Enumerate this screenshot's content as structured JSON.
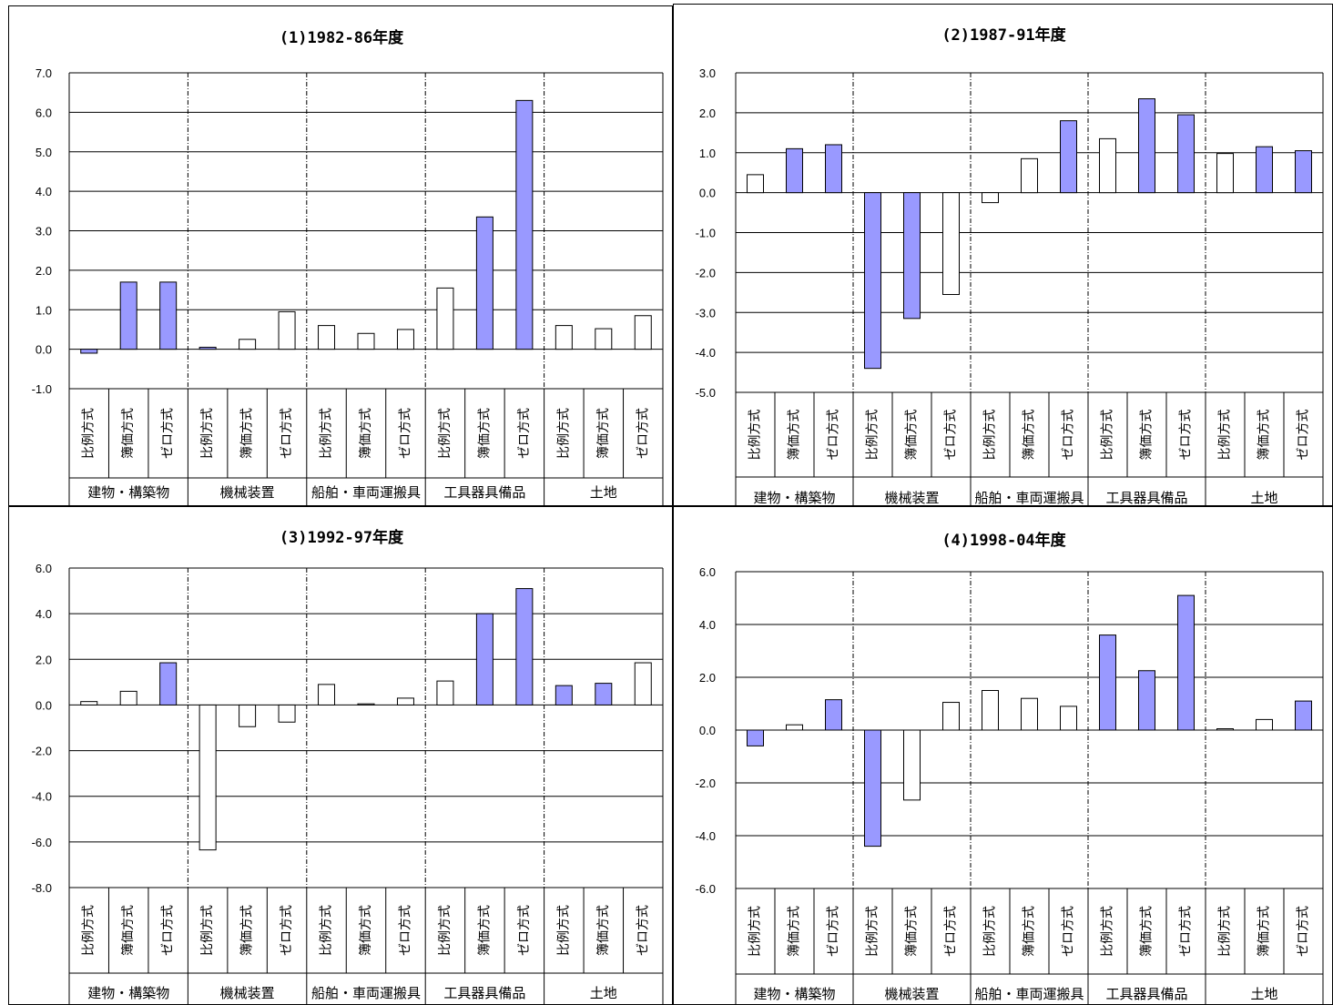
{
  "chart_data": [
    {
      "type": "bar",
      "title": "(1)1982-86年度",
      "ylim": [
        -1.0,
        7.0
      ],
      "yticks": [
        7.0,
        6.0,
        5.0,
        4.0,
        3.0,
        2.0,
        1.0,
        0.0,
        -1.0
      ],
      "groups": [
        "建物・構築物",
        "機械装置",
        "船舶・車両運搬具",
        "工具器具備品",
        "土地"
      ],
      "categories": [
        "比例方式",
        "簿価方式",
        "ゼロ方式"
      ],
      "values": [
        [
          -0.1,
          1.7,
          1.7
        ],
        [
          0.05,
          0.25,
          0.95
        ],
        [
          0.6,
          0.4,
          0.5
        ],
        [
          1.55,
          3.35,
          6.3
        ],
        [
          0.6,
          0.52,
          0.85
        ]
      ],
      "highlight": [
        [
          true,
          true,
          true
        ],
        [
          true,
          false,
          false
        ],
        [
          false,
          false,
          false
        ],
        [
          false,
          true,
          true
        ],
        [
          false,
          false,
          false
        ]
      ],
      "grid": true
    },
    {
      "type": "bar",
      "title": "(2)1987-91年度",
      "ylim": [
        -5.0,
        3.0
      ],
      "yticks": [
        3.0,
        2.0,
        1.0,
        0.0,
        -1.0,
        -2.0,
        -3.0,
        -4.0,
        -5.0
      ],
      "groups": [
        "建物・構築物",
        "機械装置",
        "船舶・車両運搬具",
        "工具器具備品",
        "土地"
      ],
      "categories": [
        "比例方式",
        "簿価方式",
        "ゼロ方式"
      ],
      "values": [
        [
          0.45,
          1.1,
          1.2
        ],
        [
          -4.4,
          -3.15,
          -2.55
        ],
        [
          -0.25,
          0.85,
          1.8
        ],
        [
          1.35,
          2.35,
          1.95
        ],
        [
          0.98,
          1.15,
          1.05
        ]
      ],
      "highlight": [
        [
          false,
          true,
          true
        ],
        [
          true,
          true,
          false
        ],
        [
          false,
          false,
          true
        ],
        [
          false,
          true,
          true
        ],
        [
          false,
          true,
          true
        ]
      ],
      "grid": true
    },
    {
      "type": "bar",
      "title": "(3)1992-97年度",
      "ylim": [
        -8.0,
        6.0
      ],
      "yticks": [
        6.0,
        4.0,
        2.0,
        0.0,
        -2.0,
        -4.0,
        -6.0,
        -8.0
      ],
      "groups": [
        "建物・構築物",
        "機械装置",
        "船舶・車両運搬具",
        "工具器具備品",
        "土地"
      ],
      "categories": [
        "比例方式",
        "簿価方式",
        "ゼロ方式"
      ],
      "values": [
        [
          0.15,
          0.6,
          1.85
        ],
        [
          -6.35,
          -0.95,
          -0.75
        ],
        [
          0.9,
          0.05,
          0.3
        ],
        [
          1.05,
          4.0,
          5.1
        ],
        [
          0.85,
          0.95,
          1.85
        ]
      ],
      "highlight": [
        [
          false,
          false,
          true
        ],
        [
          false,
          false,
          false
        ],
        [
          false,
          false,
          false
        ],
        [
          false,
          true,
          true
        ],
        [
          true,
          true,
          false
        ]
      ],
      "grid": true
    },
    {
      "type": "bar",
      "title": "(4)1998-04年度",
      "ylim": [
        -6.0,
        6.0
      ],
      "yticks": [
        6.0,
        4.0,
        2.0,
        0.0,
        -2.0,
        -4.0,
        -6.0
      ],
      "groups": [
        "建物・構築物",
        "機械装置",
        "船舶・車両運搬具",
        "工具器具備品",
        "土地"
      ],
      "categories": [
        "比例方式",
        "簿価方式",
        "ゼロ方式"
      ],
      "values": [
        [
          -0.6,
          0.2,
          1.15
        ],
        [
          -4.4,
          -2.65,
          1.05
        ],
        [
          1.5,
          1.2,
          0.9
        ],
        [
          3.6,
          2.25,
          5.1
        ],
        [
          0.05,
          0.4,
          1.1
        ]
      ],
      "highlight": [
        [
          true,
          false,
          true
        ],
        [
          true,
          false,
          false
        ],
        [
          false,
          false,
          false
        ],
        [
          true,
          true,
          true
        ],
        [
          false,
          false,
          true
        ]
      ],
      "grid": true
    }
  ],
  "colors": {
    "highlight_fill": "#9999ff",
    "plain_fill": "#ffffff",
    "stroke": "#000000",
    "grid": "#000000"
  }
}
